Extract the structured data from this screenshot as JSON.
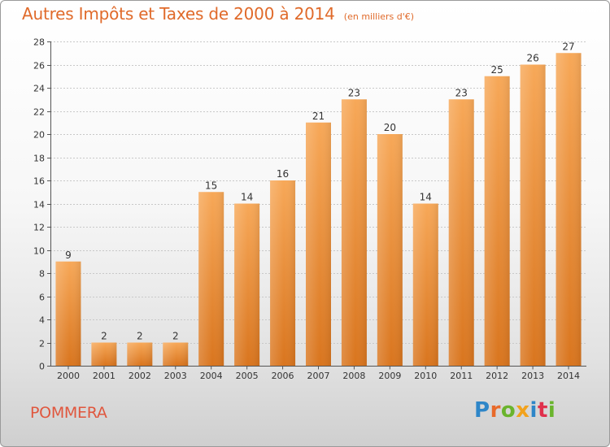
{
  "header": {
    "title": "Autres Impôts et Taxes de 2000 à 2014",
    "subtitle": "(en milliers d'€)"
  },
  "footer": {
    "commune": "POMMERA",
    "logo": "Proxiti",
    "logo_icon": "proxiti-logo-icon"
  },
  "colors": {
    "bar_light": "#f7a858",
    "bar_dark": "#d9751e",
    "title": "#e06a2a",
    "commune": "#e0573e",
    "grid": "#c8c8c8"
  },
  "chart_data": {
    "type": "bar",
    "title": "Autres Impôts et Taxes de 2000 à 2014",
    "subtitle": "(en milliers d'€)",
    "xlabel": "",
    "ylabel": "",
    "categories": [
      "2000",
      "2001",
      "2002",
      "2003",
      "2004",
      "2005",
      "2006",
      "2007",
      "2008",
      "2009",
      "2010",
      "2011",
      "2012",
      "2013",
      "2014"
    ],
    "values": [
      9,
      2,
      2,
      2,
      15,
      14,
      16,
      21,
      23,
      20,
      14,
      23,
      25,
      26,
      27
    ],
    "data_labels": [
      "9",
      "2",
      "2",
      "2",
      "15",
      "14",
      "16",
      "21",
      "23",
      "20",
      "14",
      "23",
      "25",
      "26",
      "27"
    ],
    "ylim": [
      0,
      28
    ],
    "yticks": [
      0,
      2,
      4,
      6,
      8,
      10,
      12,
      14,
      16,
      18,
      20,
      22,
      24,
      26,
      28
    ],
    "ytick_labels": [
      "0",
      "2",
      "4",
      "6",
      "8",
      "10",
      "12",
      "14",
      "16",
      "18",
      "20",
      "22",
      "24",
      "26",
      "28"
    ],
    "grid": true,
    "legend": "none"
  }
}
